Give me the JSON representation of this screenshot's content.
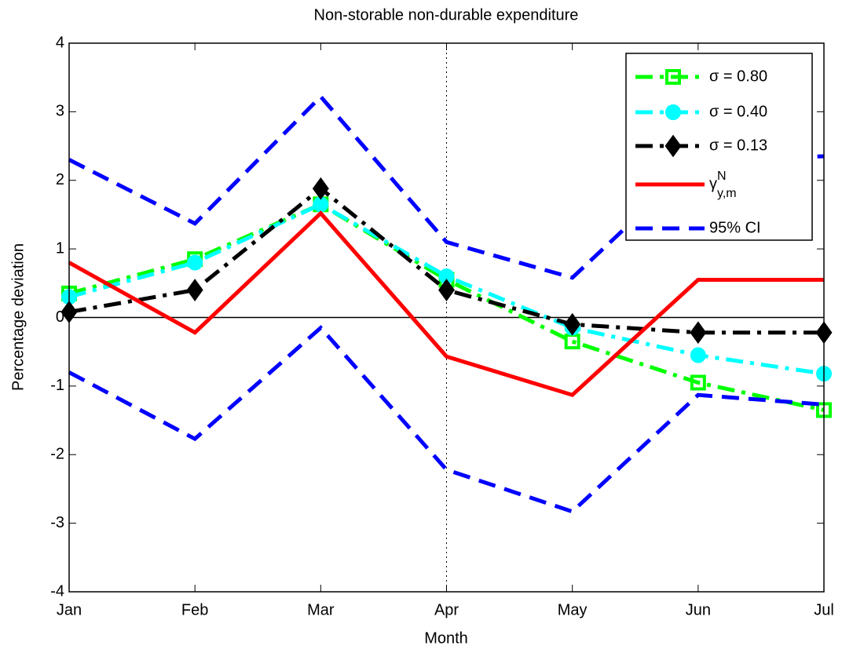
{
  "chart_data": {
    "type": "line",
    "title": "Non-storable non-durable expenditure",
    "x_label": "Month",
    "y_label": "Percentage deviation",
    "categories": [
      "Jan",
      "Feb",
      "Mar",
      "Apr",
      "May",
      "Jun",
      "Jul"
    ],
    "ylim": [
      -4,
      4
    ],
    "yticks": [
      -4,
      -3,
      -2,
      -1,
      0,
      1,
      2,
      3,
      4
    ],
    "hline": 0,
    "vline": "Apr",
    "legend": "upper right",
    "series": [
      {
        "name": "σ = 0.80",
        "color": "#00ff00",
        "dash": "dashdot",
        "marker": "square",
        "values": [
          0.35,
          0.85,
          1.65,
          0.55,
          -0.35,
          -0.95,
          -1.35
        ]
      },
      {
        "name": "σ = 0.40",
        "color": "#00ffff",
        "dash": "dashdot",
        "marker": "circle",
        "values": [
          0.3,
          0.8,
          1.65,
          0.6,
          -0.15,
          -0.55,
          -0.82
        ]
      },
      {
        "name": "σ = 0.13",
        "color": "#000000",
        "dash": "dashdot",
        "marker": "diamond",
        "values": [
          0.08,
          0.4,
          1.88,
          0.4,
          -0.1,
          -0.22,
          -0.22
        ]
      },
      {
        "name": "γ",
        "name_sup": "N",
        "name_sub": "y,m",
        "color": "#ff0000",
        "dash": "solid",
        "values": [
          0.8,
          -0.22,
          1.52,
          -0.57,
          -1.13,
          0.55,
          0.55
        ]
      },
      {
        "name": "95% CI",
        "color": "#0000ff",
        "dash": "dash",
        "values": [
          2.3,
          1.37,
          3.22,
          1.1,
          0.58,
          2.3,
          2.35
        ]
      },
      {
        "color": "#0000ff",
        "dash": "dash",
        "values": [
          -0.8,
          -1.77,
          -0.15,
          -2.22,
          -2.83,
          -1.13,
          -1.27
        ]
      }
    ]
  }
}
